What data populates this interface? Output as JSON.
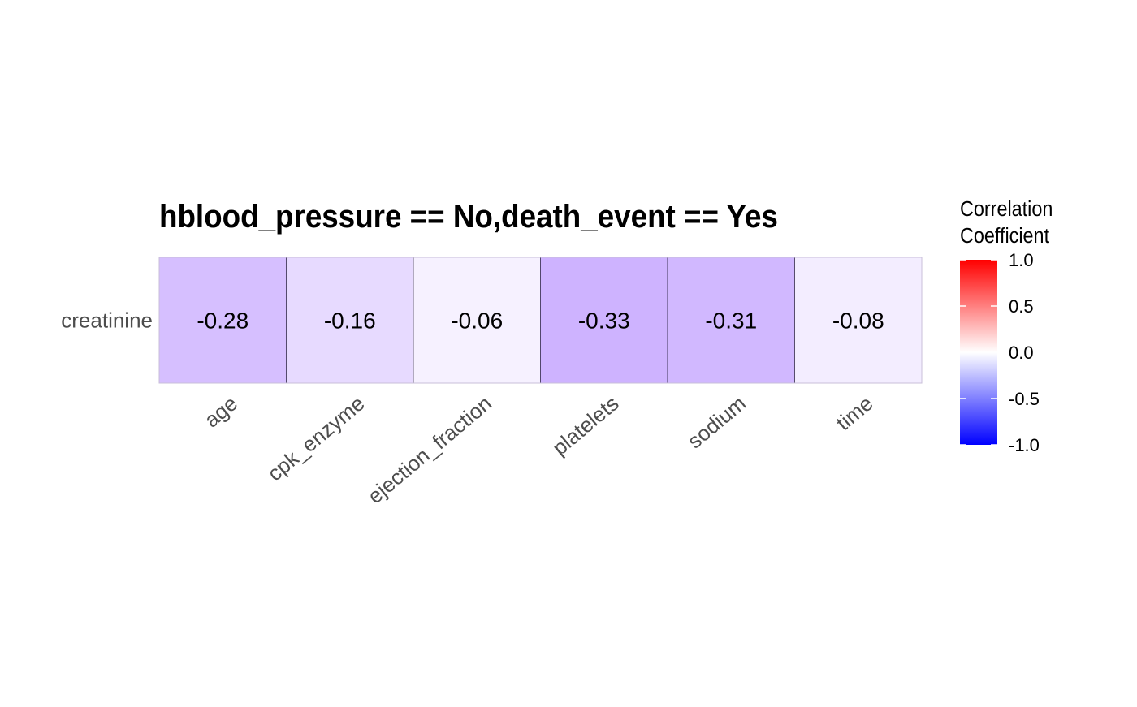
{
  "chart_data": {
    "type": "heatmap",
    "title": "hblood_pressure == No,death_event == Yes",
    "rows": [
      "creatinine"
    ],
    "columns": [
      "age",
      "cpk_enzyme",
      "ejection_fraction",
      "platelets",
      "sodium",
      "time"
    ],
    "values": [
      [
        -0.28,
        -0.16,
        -0.06,
        -0.33,
        -0.31,
        -0.08
      ]
    ],
    "value_labels": [
      [
        "-0.28",
        "-0.16",
        "-0.06",
        "-0.33",
        "-0.31",
        "-0.08"
      ]
    ],
    "legend": {
      "title_lines": [
        "Correlation",
        "Coefficient"
      ],
      "ticks": [
        "1.0",
        "0.5",
        "0.0",
        "-0.5",
        "-1.0"
      ],
      "tick_values": [
        1.0,
        0.5,
        0.0,
        -0.5,
        -1.0
      ],
      "range": [
        -1,
        1
      ],
      "placement": "right"
    },
    "colors": {
      "low": "#0000ff",
      "mid": "#ffffff",
      "high": "#ff0000"
    }
  }
}
